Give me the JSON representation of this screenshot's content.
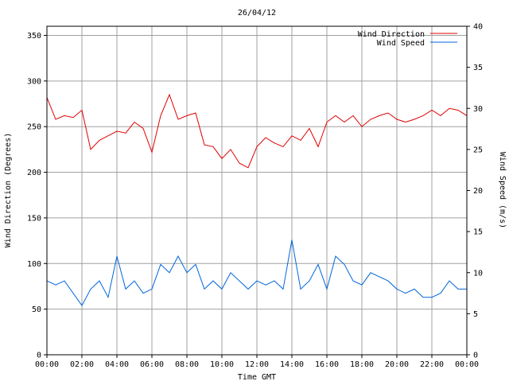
{
  "chart_data": {
    "type": "line",
    "title": "26/04/12",
    "xlabel": "Time GMT",
    "ylabel_left": "Wind Direction (Degrees)",
    "ylabel_right": "Wind Speed (m/s)",
    "x_ticks": [
      "00:00",
      "02:00",
      "04:00",
      "06:00",
      "08:00",
      "10:00",
      "12:00",
      "14:00",
      "16:00",
      "18:00",
      "20:00",
      "22:00",
      "00:00"
    ],
    "y_left_ticks": [
      "0",
      "50",
      "100",
      "150",
      "200",
      "250",
      "300",
      "350"
    ],
    "y_right_ticks": [
      "0",
      "5",
      "10",
      "15",
      "20",
      "25",
      "30",
      "35",
      "40"
    ],
    "y_left_range": [
      0,
      360
    ],
    "y_right_range": [
      0,
      40
    ],
    "x_range_hours": [
      0,
      24
    ],
    "grid": true,
    "legend_placement": "top-right",
    "series": [
      {
        "name": "Wind Direction",
        "axis": "left",
        "color": "#e00000",
        "x_hours": [
          0,
          0.5,
          1,
          1.5,
          2,
          2.5,
          3,
          3.5,
          4,
          4.5,
          5,
          5.5,
          6,
          6.5,
          7,
          7.5,
          8,
          8.5,
          9,
          9.5,
          10,
          10.5,
          11,
          11.5,
          12,
          12.5,
          13,
          13.5,
          14,
          14.5,
          15,
          15.5,
          16,
          16.5,
          17,
          17.5,
          18,
          18.5,
          19,
          19.5,
          20,
          20.5,
          21,
          21.5,
          22,
          22.5,
          23,
          23.5,
          24
        ],
        "values": [
          282,
          258,
          262,
          260,
          268,
          225,
          235,
          240,
          245,
          243,
          255,
          248,
          222,
          262,
          285,
          258,
          262,
          265,
          230,
          228,
          215,
          225,
          210,
          205,
          228,
          238,
          232,
          228,
          240,
          235,
          248,
          228,
          255,
          262,
          255,
          262,
          250,
          258,
          262,
          265,
          258,
          255,
          258,
          262,
          268,
          262,
          270,
          268,
          262
        ]
      },
      {
        "name": "Wind Speed",
        "axis": "right",
        "color": "#0066dd",
        "x_hours": [
          0,
          0.5,
          1,
          1.5,
          2,
          2.5,
          3,
          3.5,
          4,
          4.5,
          5,
          5.5,
          6,
          6.5,
          7,
          7.5,
          8,
          8.5,
          9,
          9.5,
          10,
          10.5,
          11,
          11.5,
          12,
          12.5,
          13,
          13.5,
          14,
          14.5,
          15,
          15.5,
          16,
          16.5,
          17,
          17.5,
          18,
          18.5,
          19,
          19.5,
          20,
          20.5,
          21,
          21.5,
          22,
          22.5,
          23,
          23.5,
          24
        ],
        "values": [
          9,
          8.5,
          9,
          7.5,
          6,
          8,
          9,
          7,
          12,
          8,
          9,
          7.5,
          8,
          11,
          10,
          12,
          10,
          11,
          8,
          9,
          8,
          10,
          9,
          8,
          9,
          8.5,
          9,
          8,
          14,
          8,
          9,
          11,
          8,
          12,
          11,
          9,
          8.5,
          10,
          9.5,
          9,
          8,
          7.5,
          8,
          7,
          7,
          7.5,
          9,
          8,
          8
        ]
      }
    ]
  }
}
